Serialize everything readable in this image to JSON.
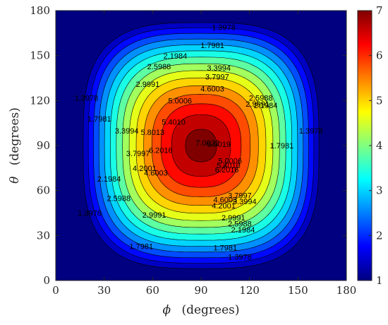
{
  "chart_data": {
    "type": "heatmap",
    "title": "",
    "xlabel": "(degrees)",
    "xlabel_symbol": "ϕ",
    "ylabel": "(degrees)",
    "ylabel_symbol": "θ",
    "xlim": [
      0,
      180
    ],
    "ylim": [
      0,
      180
    ],
    "x_ticks": [
      0,
      30,
      60,
      90,
      120,
      150,
      180
    ],
    "y_ticks": [
      0,
      30,
      60,
      90,
      120,
      150,
      180
    ],
    "colorbar": {
      "range": [
        1,
        7
      ],
      "ticks": [
        1,
        2,
        3,
        4,
        5,
        6,
        7
      ],
      "colormap": "jet",
      "location": "right"
    },
    "peak": {
      "phi": 90,
      "theta": 90,
      "value": 7.0
    },
    "contour_levels": [
      1.3978,
      1.7981,
      2.1984,
      2.5988,
      2.9991,
      3.3994,
      3.7997,
      4.2001,
      4.6003,
      5.0006,
      5.401,
      5.8013,
      6.2016,
      6.6019,
      7.0022
    ],
    "contour_labels": [
      {
        "text": "1.3978",
        "phi": 104,
        "theta": 167
      },
      {
        "text": "1.7981",
        "phi": 97,
        "theta": 155
      },
      {
        "text": "2.1984",
        "phi": 74,
        "theta": 148
      },
      {
        "text": "2.5988",
        "phi": 64,
        "theta": 141
      },
      {
        "text": "2.9991",
        "phi": 57,
        "theta": 129
      },
      {
        "text": "3.3994",
        "phi": 101,
        "theta": 140
      },
      {
        "text": "3.7997",
        "phi": 100,
        "theta": 134
      },
      {
        "text": "4.6003",
        "phi": 97,
        "theta": 126
      },
      {
        "text": "5.0006",
        "phi": 77,
        "theta": 118
      },
      {
        "text": "5.4010",
        "phi": 73,
        "theta": 104
      },
      {
        "text": "7.0022",
        "phi": 94,
        "theta": 90
      },
      {
        "text": "6.6019",
        "phi": 101,
        "theta": 89
      },
      {
        "text": "6.2016",
        "phi": 106,
        "theta": 72
      },
      {
        "text": "5.8013",
        "phi": 60,
        "theta": 97
      },
      {
        "text": "6.2016",
        "phi": 65,
        "theta": 85
      },
      {
        "text": "2.1984",
        "phi": 130,
        "theta": 115
      },
      {
        "text": "2.5988",
        "phi": 127,
        "theta": 120
      },
      {
        "text": "2.9991",
        "phi": 125,
        "theta": 116
      },
      {
        "text": "1.7981",
        "phi": 140,
        "theta": 88
      },
      {
        "text": "1.3978",
        "phi": 158,
        "theta": 98
      },
      {
        "text": "1.3978",
        "phi": 19,
        "theta": 120
      },
      {
        "text": "1.7981",
        "phi": 27,
        "theta": 106
      },
      {
        "text": "3.3994",
        "phi": 44,
        "theta": 98
      },
      {
        "text": "3.7997",
        "phi": 51,
        "theta": 83
      },
      {
        "text": "4.2001",
        "phi": 55,
        "theta": 73
      },
      {
        "text": "4.6003",
        "phi": 62,
        "theta": 70
      },
      {
        "text": "5.0006",
        "phi": 108,
        "theta": 78
      },
      {
        "text": "5.4010",
        "phi": 107,
        "theta": 75
      },
      {
        "text": "2.1984",
        "phi": 33,
        "theta": 66
      },
      {
        "text": "2.5988",
        "phi": 39,
        "theta": 53
      },
      {
        "text": "2.9991",
        "phi": 61,
        "theta": 42
      },
      {
        "text": "4.6003",
        "phi": 105,
        "theta": 52
      },
      {
        "text": "4.2001",
        "phi": 104,
        "theta": 48
      },
      {
        "text": "3.7997",
        "phi": 114,
        "theta": 55
      },
      {
        "text": "3.3994",
        "phi": 117,
        "theta": 51
      },
      {
        "text": "2.9991",
        "phi": 110,
        "theta": 40
      },
      {
        "text": "2.5988",
        "phi": 114,
        "theta": 36
      },
      {
        "text": "2.1984",
        "phi": 116,
        "theta": 32
      },
      {
        "text": "1.3978",
        "phi": 21,
        "theta": 43
      },
      {
        "text": "1.7981",
        "phi": 53,
        "theta": 21
      },
      {
        "text": "1.7981",
        "phi": 105,
        "theta": 20
      },
      {
        "text": "1.3978",
        "phi": 114,
        "theta": 14
      }
    ]
  }
}
